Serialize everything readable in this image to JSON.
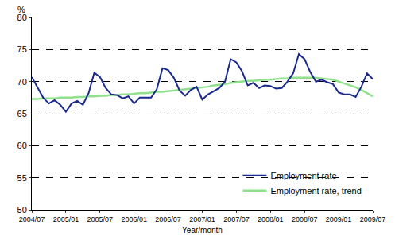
{
  "chart_data": {
    "type": "line",
    "x_label": "Year/month",
    "y_label": "%",
    "categories": [
      "2004/07",
      null,
      null,
      null,
      null,
      null,
      "2005/01",
      null,
      null,
      null,
      null,
      null,
      "2005/07",
      null,
      null,
      null,
      null,
      null,
      "2006/01",
      null,
      null,
      null,
      null,
      null,
      "2006/07",
      null,
      null,
      null,
      null,
      null,
      "2007/01",
      null,
      null,
      null,
      null,
      null,
      "2007/07",
      null,
      null,
      null,
      null,
      null,
      "2008/01",
      null,
      null,
      null,
      null,
      null,
      "2008/07",
      null,
      null,
      null,
      null,
      null,
      "2009/01",
      null,
      null,
      null,
      null,
      null,
      "2009/07"
    ],
    "series": [
      {
        "name": "Employment rate",
        "color": "#1a2a8f",
        "values": [
          70.7,
          69.0,
          67.5,
          66.6,
          67.1,
          66.4,
          65.3,
          66.6,
          67.0,
          66.4,
          68.2,
          71.4,
          70.7,
          69.0,
          68.0,
          67.9,
          67.4,
          67.7,
          66.6,
          67.5,
          67.5,
          67.5,
          68.8,
          72.1,
          71.8,
          70.6,
          68.6,
          67.8,
          68.7,
          69.2,
          67.2,
          68.0,
          68.5,
          69.0,
          70.0,
          73.5,
          73.0,
          71.6,
          69.4,
          69.8,
          69.0,
          69.4,
          69.3,
          68.9,
          69.0,
          70.0,
          71.3,
          74.3,
          73.5,
          71.5,
          70.0,
          70.3,
          69.9,
          69.6,
          68.3,
          68.0,
          68.0,
          67.6,
          69.2,
          71.3,
          70.4
        ]
      },
      {
        "name": "Employment rate, trend",
        "color": "#90e08c",
        "values": [
          67.3,
          67.3,
          67.4,
          67.4,
          67.4,
          67.5,
          67.5,
          67.5,
          67.6,
          67.6,
          67.7,
          67.7,
          67.8,
          67.8,
          67.9,
          67.9,
          68.0,
          68.0,
          68.1,
          68.2,
          68.2,
          68.3,
          68.4,
          68.4,
          68.5,
          68.6,
          68.7,
          68.8,
          68.9,
          69.0,
          69.1,
          69.2,
          69.4,
          69.5,
          69.6,
          69.8,
          69.9,
          70.0,
          70.1,
          70.1,
          70.2,
          70.3,
          70.3,
          70.4,
          70.5,
          70.5,
          70.6,
          70.6,
          70.6,
          70.6,
          70.6,
          70.5,
          70.4,
          70.3,
          70.0,
          69.7,
          69.4,
          69.1,
          68.7,
          68.2,
          67.7
        ]
      }
    ],
    "ylim": [
      50,
      80
    ],
    "yticks": [
      50,
      55,
      60,
      65,
      70,
      75,
      80
    ],
    "grid": true,
    "legend": "lower right"
  }
}
